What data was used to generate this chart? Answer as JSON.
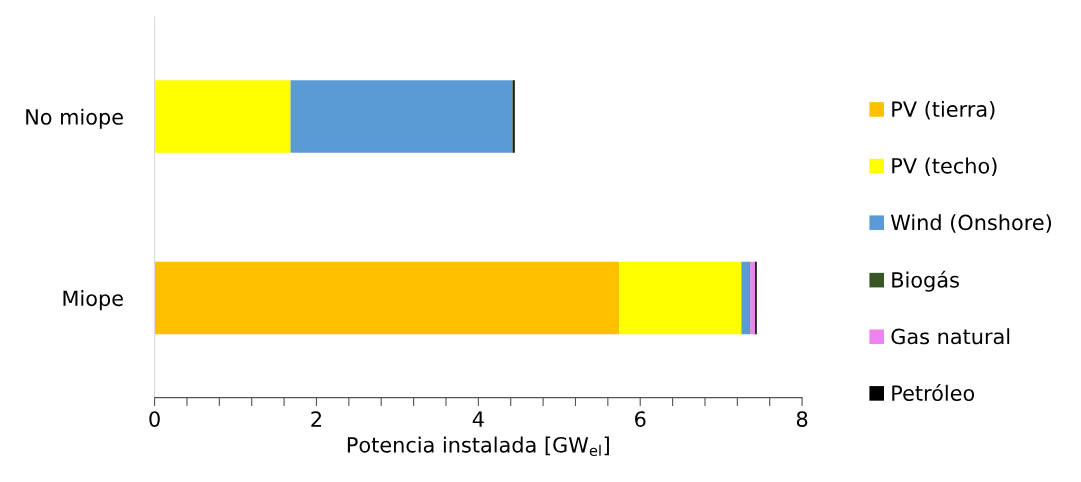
{
  "chart_data": {
    "type": "bar",
    "orientation": "horizontal",
    "stacked": true,
    "xlabel": "Potencia instalada [GW$_{el}$]",
    "categories": [
      "No miope",
      "Miope"
    ],
    "series": [
      {
        "name": "PV (tierra)",
        "color": "#ffc000",
        "values": [
          0,
          5.74
        ]
      },
      {
        "name": "PV (techo)",
        "color": "#ffff00",
        "values": [
          1.68,
          1.51
        ]
      },
      {
        "name": "Wind (Onshore)",
        "color": "#5b9bd5",
        "values": [
          2.74,
          0.1
        ]
      },
      {
        "name": "Biogás",
        "color": "#375623",
        "values": [
          0.01,
          0.01
        ]
      },
      {
        "name": "Gas natural",
        "color": "#ee82ee",
        "values": [
          0,
          0.06
        ]
      },
      {
        "name": "Petróleo",
        "color": "#000000",
        "values": [
          0.02,
          0.02
        ]
      }
    ],
    "xlim": [
      0,
      8
    ],
    "xticks": [
      0,
      {
        "value": 0.4,
        "label": null
      },
      {
        "value": 0.8,
        "label": null
      },
      {
        "value": 1.2,
        "label": null
      },
      {
        "value": 1.6,
        "label": null
      },
      2,
      {
        "value": 2.4,
        "label": null
      },
      {
        "value": 2.8,
        "label": null
      },
      {
        "value": 3.2,
        "label": null
      },
      {
        "value": 3.6,
        "label": null
      },
      4,
      {
        "value": 4.4,
        "label": null
      },
      {
        "value": 4.8,
        "label": null
      },
      {
        "value": 5.2,
        "label": null
      },
      {
        "value": 5.6,
        "label": null
      },
      6,
      {
        "value": 6.4,
        "label": null
      },
      {
        "value": 6.8,
        "label": null
      },
      {
        "value": 7.2,
        "label": null
      },
      {
        "value": 7.6,
        "label": null
      },
      8
    ],
    "grid": false,
    "legend": "right"
  }
}
